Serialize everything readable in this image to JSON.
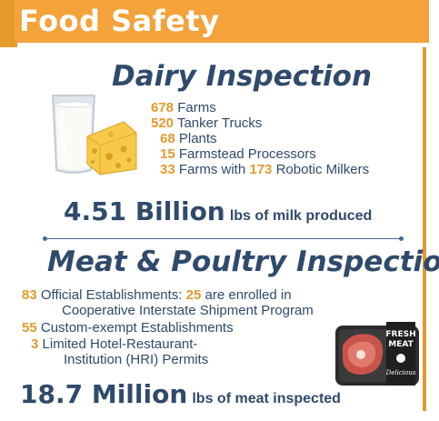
{
  "header": {
    "title": "Food Safety"
  },
  "dairy": {
    "title": "Dairy Inspection",
    "items": [
      {
        "num": "678",
        "label": "Farms"
      },
      {
        "num": "520",
        "label": "Tanker Trucks"
      },
      {
        "num": "68",
        "label": "Plants"
      },
      {
        "num": "15",
        "label": "Farmstead Processors"
      },
      {
        "num": "33",
        "label": "Farms with",
        "num2": "173",
        "label2": "Robotic Milkers"
      }
    ],
    "total": {
      "value": "4.51 Billion",
      "unit": "lbs of milk produced"
    }
  },
  "meat": {
    "title": "Meat & Poultry Inspection",
    "items": [
      {
        "num": "83",
        "label": "Official Establishments:",
        "num2": "25",
        "label2": "are enrolled in",
        "line2": "Cooperative Interstate Shipment Program"
      },
      {
        "num": "55",
        "label": "Custom-exempt Establishments"
      },
      {
        "num": "3",
        "label": "Limited Hotel-Restaurant-",
        "line2": "Institution (HRI) Permits"
      }
    ],
    "total": {
      "value": "18.7 Million",
      "unit": "lbs of meat inspected"
    },
    "package_text": {
      "line1": "FRESH",
      "line2": "MEAT",
      "brand": "Delicious"
    }
  },
  "colors": {
    "accent": "#f4a23a",
    "navy": "#2f4a6b",
    "number": "#e59a2c"
  },
  "icons": [
    "milk-glass-icon",
    "cheese-icon",
    "meat-package-icon"
  ]
}
